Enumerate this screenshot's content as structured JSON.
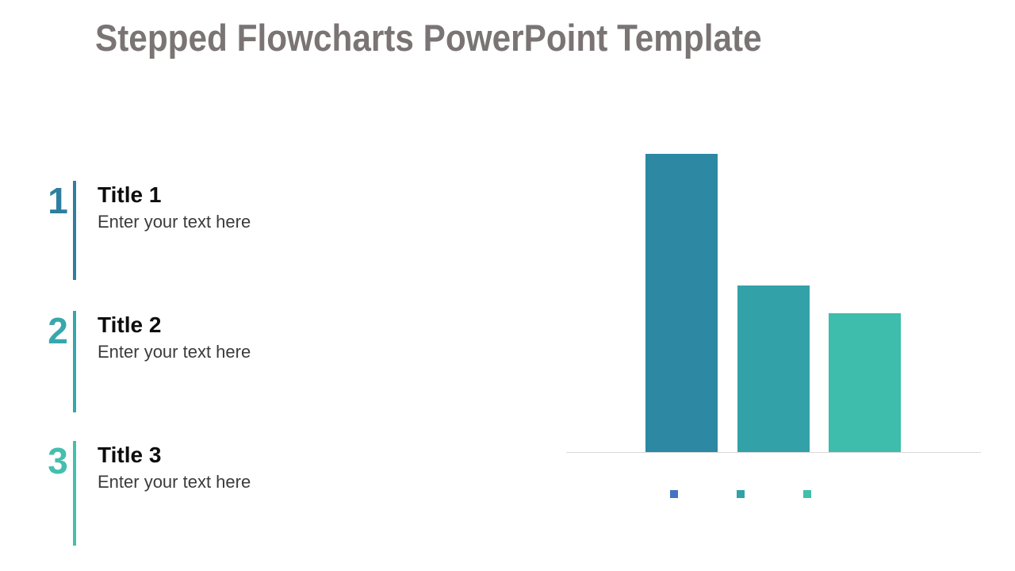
{
  "slide": {
    "title": "Stepped Flowcharts PowerPoint Template"
  },
  "colors": {
    "background": "#FFFFFF",
    "title": "#7A7474",
    "step_title": "#0D0D0D",
    "body_text": "#3B3B3B",
    "axis_line": "#D9D9D9"
  },
  "steps": [
    {
      "number": "1",
      "title": "Title 1",
      "text": "Enter your text here",
      "accent": "#2E7F9F"
    },
    {
      "number": "2",
      "title": "Title 2",
      "text": "Enter your text here",
      "accent": "#38A7AD"
    },
    {
      "number": "3",
      "title": "Title 3",
      "text": "Enter your text here",
      "accent": "#44BFAE"
    }
  ],
  "chart_data": {
    "type": "bar",
    "title": "",
    "xlabel": "",
    "ylabel": "",
    "values": [
      4.3,
      2.4,
      2.0
    ],
    "values_note": "estimated from relative bar heights; no axis ticks or data labels are shown",
    "bar_colors": [
      "#2C88A3",
      "#33A1A8",
      "#3EBCAC"
    ],
    "ylim": [
      0,
      4.5
    ],
    "grid": false,
    "axes_visible": false,
    "baseline_color": "#D9D9D9",
    "legend": {
      "position": "bottom",
      "labels": [
        "",
        "",
        ""
      ],
      "marker_colors": [
        "#4472C4",
        "#33A1A8",
        "#40BFAC"
      ]
    }
  }
}
